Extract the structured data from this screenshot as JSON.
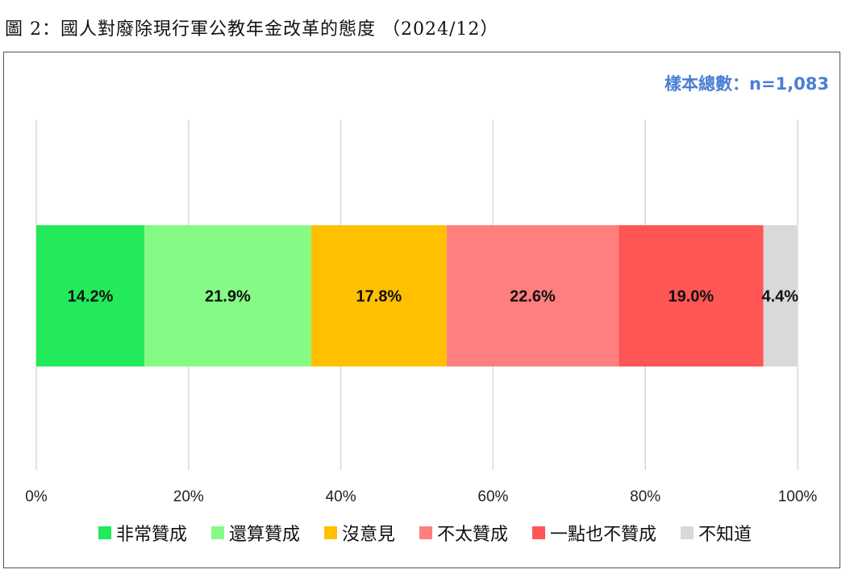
{
  "title": "圖 2：國人對廢除現行軍公教年金改革的態度 （2024/12）",
  "sample_note": "樣本總數：n=1,083",
  "chart_data": {
    "type": "bar",
    "orientation": "horizontal",
    "stacked": true,
    "percent_stacked": true,
    "categories": [
      ""
    ],
    "series": [
      {
        "name": "非常贊成",
        "values": [
          14.2
        ],
        "label": "14.2%",
        "color": "#22ea5a"
      },
      {
        "name": "還算贊成",
        "values": [
          21.9
        ],
        "label": "21.9%",
        "color": "#85fa85"
      },
      {
        "name": "沒意見",
        "values": [
          17.8
        ],
        "label": "17.8%",
        "color": "#ffc000"
      },
      {
        "name": "不太贊成",
        "values": [
          22.6
        ],
        "label": "22.6%",
        "color": "#ff7f7f"
      },
      {
        "name": "一點也不贊成",
        "values": [
          19.0
        ],
        "label": "19.0%",
        "color": "#ff5555"
      },
      {
        "name": "不知道",
        "values": [
          4.4
        ],
        "label": "4.4%",
        "color": "#d9d9d9"
      }
    ],
    "xlim": [
      0,
      100
    ],
    "xticks": [
      "0%",
      "20%",
      "40%",
      "60%",
      "80%",
      "100%"
    ],
    "grid": true,
    "legend_position": "bottom"
  }
}
